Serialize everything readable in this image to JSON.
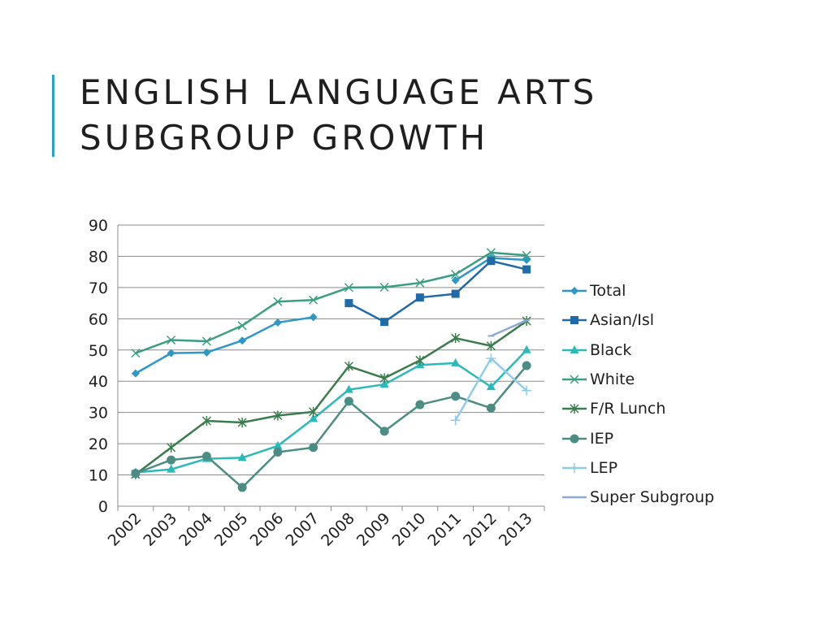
{
  "slide": {
    "title": "ENGLISH LANGUAGE ARTS SUBGROUP GROWTH",
    "accent_color": "#2aa3c8"
  },
  "chart_data": {
    "type": "line",
    "title": "",
    "xlabel": "",
    "ylabel": "",
    "ylim": [
      0,
      90
    ],
    "yticks": [
      0,
      10,
      20,
      30,
      40,
      50,
      60,
      70,
      80,
      90
    ],
    "grid": true,
    "legend_position": "right",
    "categories": [
      "2002",
      "2003",
      "2004",
      "2005",
      "2006",
      "2007",
      "2008",
      "2009",
      "2010",
      "2011",
      "2012",
      "2013"
    ],
    "series": [
      {
        "name": "Total",
        "color": "#2e97c9",
        "marker": "diamond",
        "values": [
          42.5,
          49,
          49.2,
          53,
          58.8,
          60.5,
          null,
          null,
          null,
          72.3,
          79.5,
          78.8
        ]
      },
      {
        "name": "Asian/Isl",
        "color": "#1f6aa8",
        "marker": "square",
        "values": [
          null,
          null,
          null,
          null,
          null,
          null,
          65,
          59,
          66.8,
          68,
          78.5,
          75.8
        ]
      },
      {
        "name": "Black",
        "color": "#2bb9b9",
        "marker": "triangle",
        "values": [
          10.8,
          11.8,
          15.2,
          15.5,
          19.3,
          28,
          37.3,
          39,
          45.2,
          45.8,
          38.2,
          50
        ]
      },
      {
        "name": "White",
        "color": "#3a9e82",
        "marker": "x",
        "values": [
          49,
          53.2,
          52.8,
          57.8,
          65.5,
          66,
          70,
          70.1,
          71.5,
          74.2,
          81.2,
          80.3
        ]
      },
      {
        "name": "F/R Lunch",
        "color": "#3a7c4c",
        "marker": "star",
        "values": [
          10.2,
          18.8,
          27.3,
          26.8,
          29,
          30.2,
          44.8,
          41,
          46.7,
          53.8,
          51.3,
          59.3
        ]
      },
      {
        "name": "IEP",
        "color": "#4b8d84",
        "marker": "circle",
        "values": [
          10.5,
          14.8,
          16,
          6,
          17.3,
          18.8,
          33.6,
          24,
          32.5,
          35.2,
          31.4,
          45
        ]
      },
      {
        "name": "LEP",
        "color": "#8fcbea",
        "marker": "plus",
        "values": [
          null,
          null,
          null,
          null,
          null,
          null,
          null,
          null,
          null,
          27.5,
          47.3,
          37
        ]
      },
      {
        "name": "Super Subgroup",
        "color": "#8fa9d6",
        "marker": "dash",
        "values": [
          null,
          null,
          null,
          null,
          null,
          null,
          null,
          null,
          null,
          null,
          54.5,
          59.5
        ]
      }
    ]
  }
}
